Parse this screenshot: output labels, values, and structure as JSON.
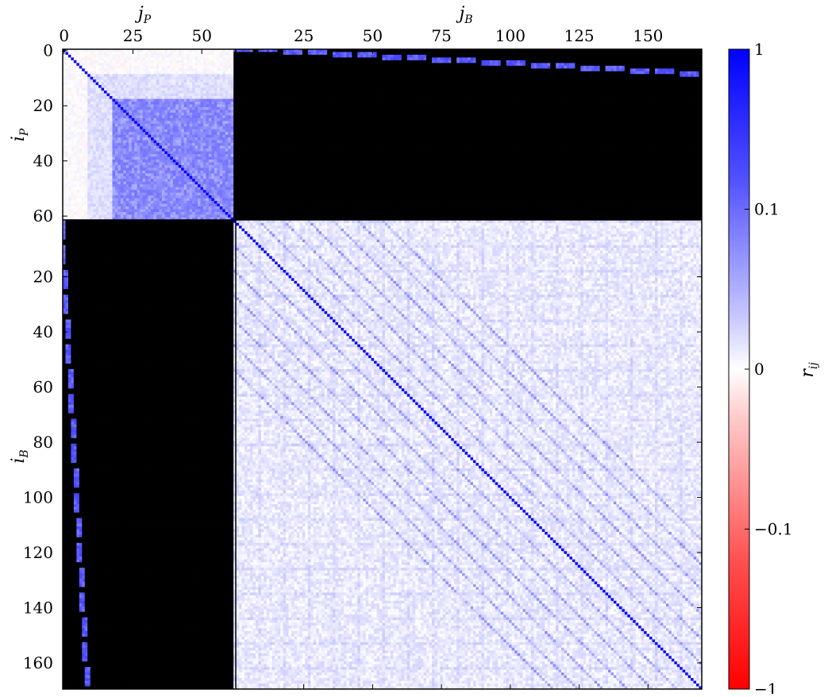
{
  "chart_data": {
    "type": "heatmap",
    "title": "",
    "matrix_size": 232,
    "blocks": {
      "P": {
        "size": 62,
        "index_range": [
          0,
          61
        ]
      },
      "B": {
        "size": 170,
        "index_range": [
          0,
          169
        ]
      }
    },
    "colorbar": {
      "label_base": "r",
      "label_sub": "ij",
      "ticks": [
        {
          "value": 1,
          "label": "1"
        },
        {
          "value": 0.1,
          "label": "0.1"
        },
        {
          "value": 0,
          "label": "0"
        },
        {
          "value": -0.1,
          "label": "−0.1"
        },
        {
          "value": -1,
          "label": "−1"
        }
      ],
      "scale": "symmetric-log",
      "colors": {
        "negative": "#ff0000",
        "zero": "#ffffff",
        "positive": "#0000ff"
      }
    },
    "top_axes": {
      "jP": {
        "label_base": "j",
        "label_sub": "P",
        "ticks": [
          0,
          25,
          50
        ]
      },
      "jB": {
        "label_base": "j",
        "label_sub": "B",
        "ticks": [
          25,
          50,
          75,
          100,
          125,
          150
        ]
      }
    },
    "left_axes": {
      "iP": {
        "label_base": "i",
        "label_sub": "P",
        "ticks": [
          0,
          20,
          40,
          60
        ]
      },
      "iB": {
        "label_base": "i",
        "label_sub": "B",
        "ticks": [
          20,
          40,
          60,
          80,
          100,
          120,
          140,
          160
        ]
      }
    },
    "pattern": {
      "diagonal_r": 1.0,
      "P_P_block_core_r": 0.12,
      "P_P_block_core_range": [
        18,
        61
      ],
      "B_B_block_background_r": 0.02,
      "P_B_block_background_r": -0.01,
      "P_B_band_r": 0.25,
      "B_B_stripe_period": 9
    }
  }
}
